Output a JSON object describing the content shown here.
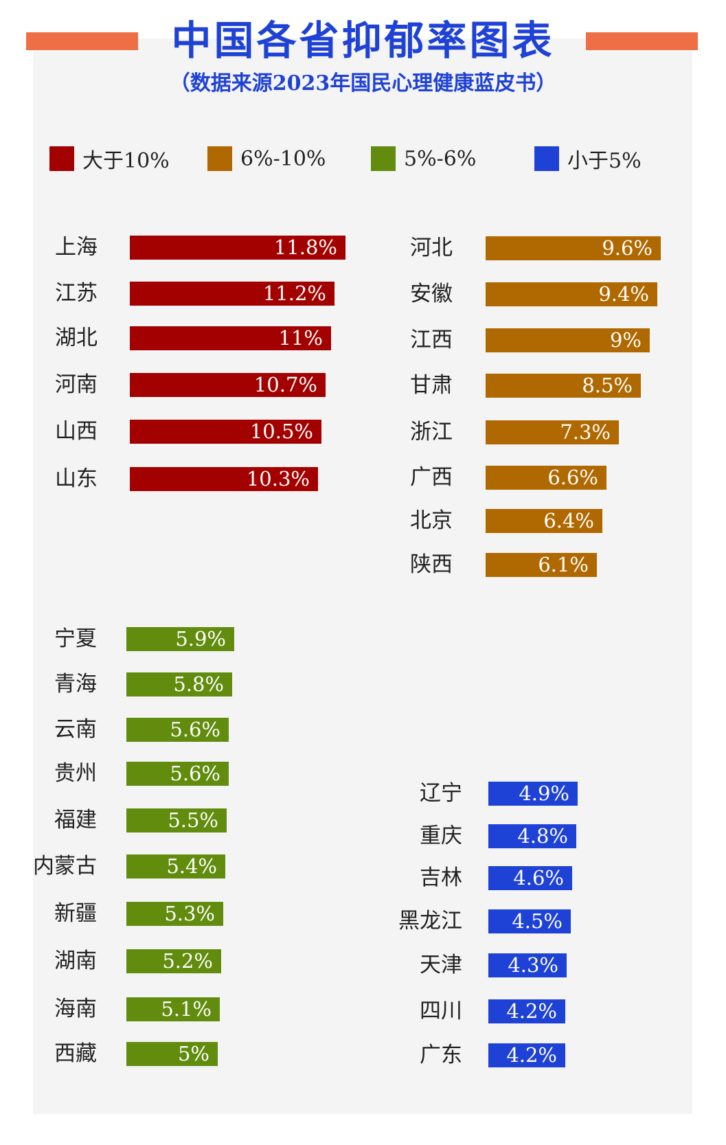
{
  "title": "中国各省抑郁率图表",
  "subtitle": "（数据来源2023年国民心理健康蓝皮书）",
  "colors": {
    "accent": "#ee6f45",
    "title": "#1f42d6",
    "panel": "#f4f4f4"
  },
  "legend": [
    {
      "label": "大于10%",
      "color": "#a30000"
    },
    {
      "label": "6%-10%",
      "color": "#b06900"
    },
    {
      "label": "5%-6%",
      "color": "#618c0d"
    },
    {
      "label": "小于5%",
      "color": "#1f42d6"
    }
  ],
  "chart_data": {
    "type": "bar",
    "unit": "%",
    "groups": [
      {
        "name": "大于10%",
        "color": "#a30000",
        "categories": [
          "上海",
          "江苏",
          "湖北",
          "河南",
          "山西",
          "山东"
        ],
        "values": [
          11.8,
          11.2,
          11,
          10.7,
          10.5,
          10.3
        ],
        "value_labels": [
          "11.8%",
          "11.2%",
          "11%",
          "10.7%",
          "10.5%",
          "10.3%"
        ]
      },
      {
        "name": "6%-10%",
        "color": "#b06900",
        "categories": [
          "河北",
          "安徽",
          "江西",
          "甘肃",
          "浙江",
          "广西",
          "北京",
          "陕西"
        ],
        "values": [
          9.6,
          9.4,
          9,
          8.5,
          7.3,
          6.6,
          6.4,
          6.1
        ],
        "value_labels": [
          "9.6%",
          "9.4%",
          "9%",
          "8.5%",
          "7.3%",
          "6.6%",
          "6.4%",
          "6.1%"
        ]
      },
      {
        "name": "5%-6%",
        "color": "#618c0d",
        "categories": [
          "宁夏",
          "青海",
          "云南",
          "贵州",
          "福建",
          "内蒙古",
          "新疆",
          "湖南",
          "海南",
          "西藏"
        ],
        "values": [
          5.9,
          5.8,
          5.6,
          5.6,
          5.5,
          5.4,
          5.3,
          5.2,
          5.1,
          5
        ],
        "value_labels": [
          "5.9%",
          "5.8%",
          "5.6%",
          "5.6%",
          "5.5%",
          "5.4%",
          "5.3%",
          "5.2%",
          "5.1%",
          "5%"
        ]
      },
      {
        "name": "小于5%",
        "color": "#1f42d6",
        "categories": [
          "辽宁",
          "重庆",
          "吉林",
          "黑龙江",
          "天津",
          "四川",
          "广东"
        ],
        "values": [
          4.9,
          4.8,
          4.6,
          4.5,
          4.3,
          4.2,
          4.2
        ],
        "value_labels": [
          "4.9%",
          "4.8%",
          "4.6%",
          "4.5%",
          "4.3%",
          "4.2%",
          "4.2%"
        ]
      }
    ]
  }
}
